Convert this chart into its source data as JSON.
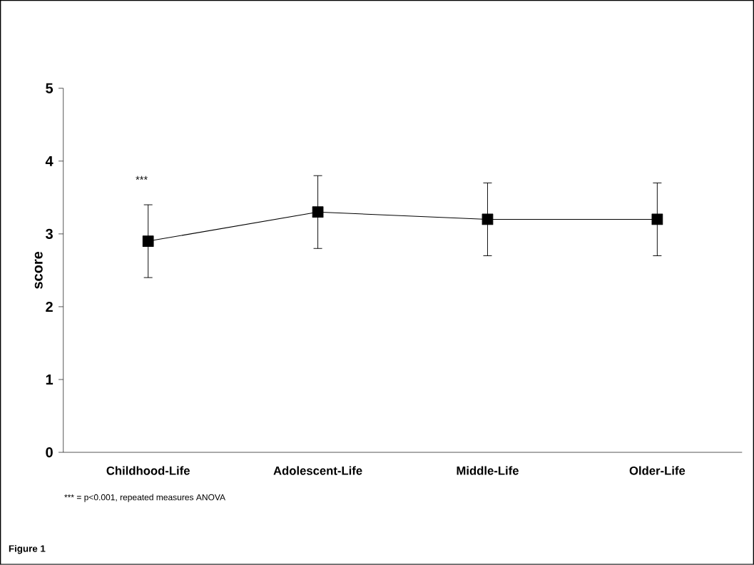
{
  "chart_data": {
    "type": "line",
    "ylabel": "score",
    "categories": [
      "Childhood-Life",
      "Adolescent-Life",
      "Middle-Life",
      "Older-Life"
    ],
    "values": [
      2.9,
      3.3,
      3.2,
      3.2
    ],
    "errors": [
      0.5,
      0.5,
      0.5,
      0.5
    ],
    "color": "#000000",
    "marker": "square",
    "line_style": "solid",
    "ylim": [
      0,
      5
    ],
    "yticks": [
      0,
      1,
      2,
      3,
      4,
      5
    ],
    "grid": false,
    "annotations": [
      "***",
      "*** = p<0.001, repeated measures ANOVA",
      "Figure 1"
    ]
  }
}
